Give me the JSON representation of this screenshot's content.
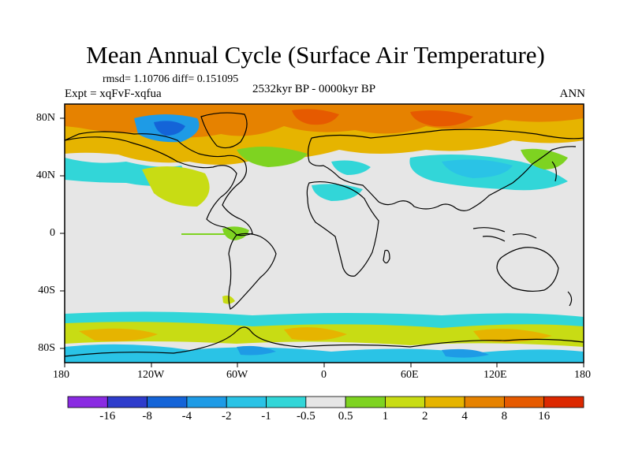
{
  "title": "Mean Annual Cycle (Surface Air Temperature)",
  "stats": "rmsd= 1.10706 diff= 0.151095",
  "experiment": "Expt = xqFvF-xqfua",
  "period": "2532kyr BP - 0000kyr BP",
  "season": "ANN",
  "map": {
    "lon_ticks": [
      "180",
      "120W",
      "60W",
      "0",
      "60E",
      "120E",
      "180"
    ],
    "lat_ticks": [
      "80N",
      "40N",
      "0",
      "40S",
      "80S"
    ],
    "background_color": "#e6e6e6"
  },
  "colorbar": {
    "labels": [
      "-16",
      "-8",
      "-4",
      "-2",
      "-1",
      "-0.5",
      "0.5",
      "1",
      "2",
      "4",
      "8",
      "16"
    ],
    "colors": [
      "#8a2be2",
      "#2e3ccc",
      "#1464d8",
      "#1e9be6",
      "#2ac3e6",
      "#32d6d8",
      "#e6e6e6",
      "#7ed321",
      "#c8dc14",
      "#e6b400",
      "#e68200",
      "#e65a00",
      "#dc2800"
    ]
  }
}
